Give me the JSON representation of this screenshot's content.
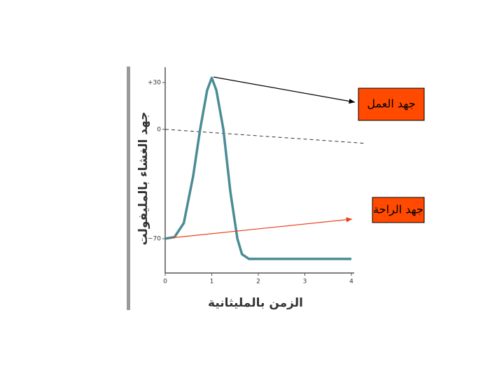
{
  "chart_data": {
    "type": "line",
    "y_label": "جهد الغشاء بالمليفولت",
    "x_label": "الزمن بالمليثانية",
    "x": [
      0,
      0.2,
      0.4,
      0.6,
      0.75,
      0.9,
      1.0,
      1.1,
      1.25,
      1.4,
      1.55,
      1.65,
      1.8,
      2,
      3,
      4
    ],
    "series": [
      {
        "color": "#4a8c96",
        "values": [
          -70,
          -69,
          -60,
          -30,
          0,
          25,
          33,
          25,
          0,
          -40,
          -70,
          -80,
          -83,
          -83,
          -83,
          -83
        ]
      }
    ],
    "xlim": [
      0,
      4
    ],
    "xticks": [
      0,
      1,
      2,
      3,
      4
    ],
    "ylim": [
      -92,
      38
    ],
    "yticks": [
      {
        "value": 30,
        "label": "+30"
      },
      0,
      {
        "value": -70,
        "label": "−70"
      }
    ],
    "reference_line": 0,
    "annotations": [
      {
        "text": "جهد العمل",
        "color": "#ff4a00",
        "arrow_color": "#000000"
      },
      {
        "text": "جهد الراحة",
        "color": "#ff4a00",
        "arrow_color": "#e8401a"
      }
    ]
  }
}
